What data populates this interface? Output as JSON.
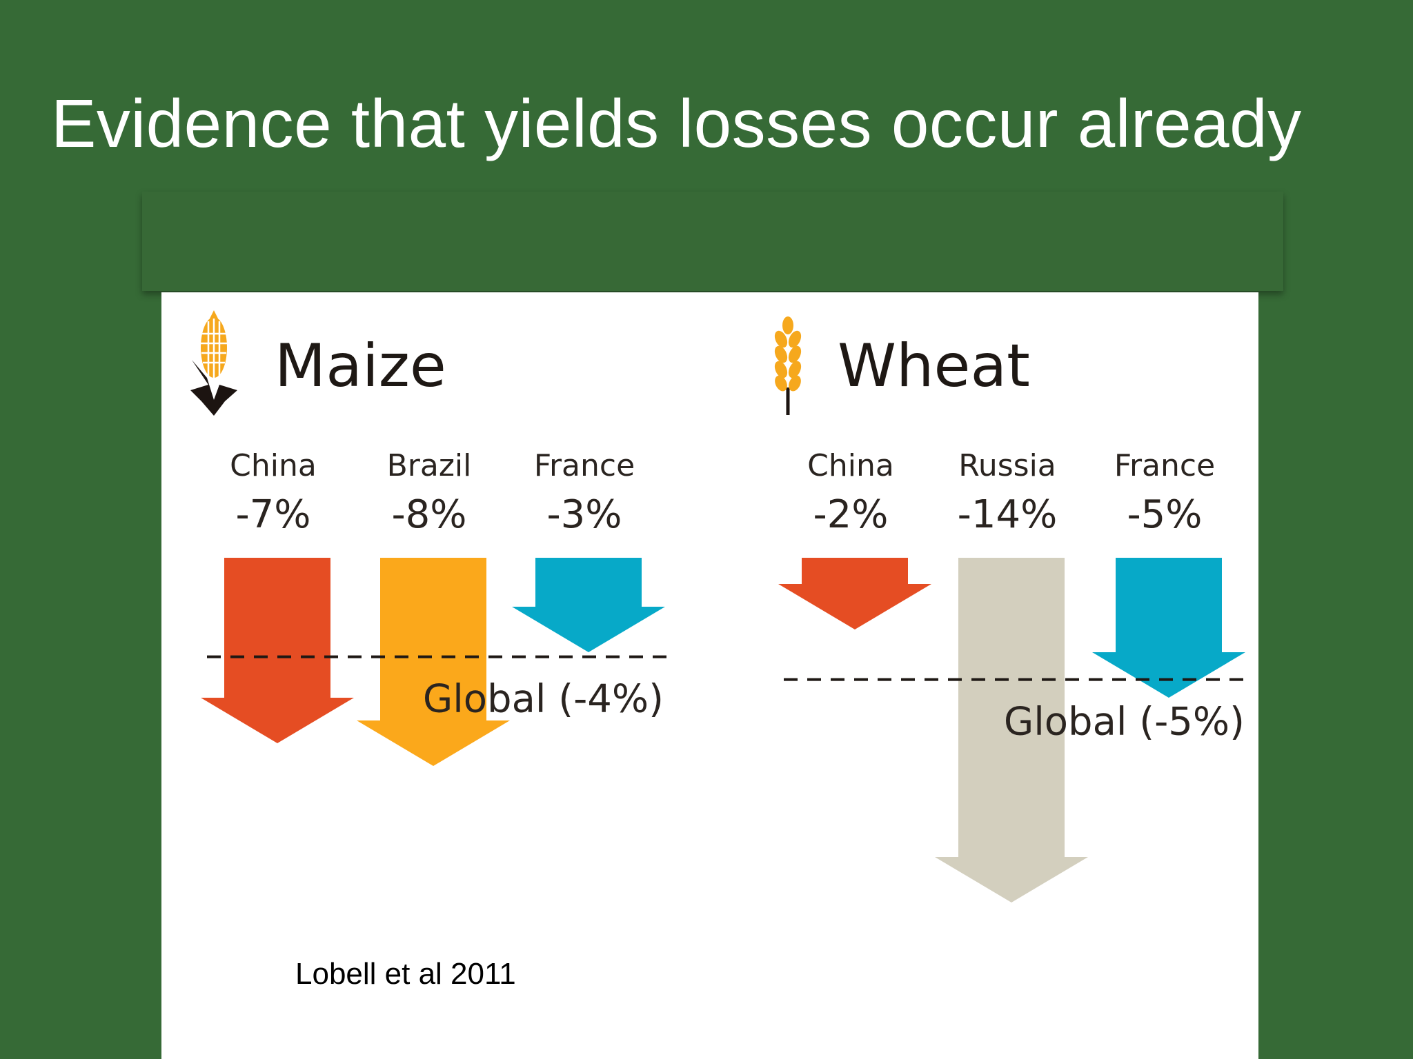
{
  "slide": {
    "title": "Evidence that yields losses occur already",
    "citation": "Lobell et al 2011"
  },
  "colors": {
    "background": "#366a36",
    "china": "#e54d23",
    "brazil": "#fba81b",
    "france": "#07a9c8",
    "russia": "#d3cfbe",
    "maize_icon": "#f6a81d",
    "wheat_icon": "#f6a81d"
  },
  "chart_data": [
    {
      "type": "bar",
      "title": "Maize",
      "icon": "corn-icon",
      "categories": [
        "China",
        "Brazil",
        "France"
      ],
      "values": [
        -7,
        -8,
        -3
      ],
      "labels": [
        "-7%",
        "-8%",
        "-3%"
      ],
      "colors": [
        "#e54d23",
        "#fba81b",
        "#07a9c8"
      ],
      "global_value": -4,
      "global_label": "Global (-4%)",
      "unit": "%"
    },
    {
      "type": "bar",
      "title": "Wheat",
      "icon": "wheat-icon",
      "categories": [
        "China",
        "Russia",
        "France"
      ],
      "values": [
        -2,
        -14,
        -5
      ],
      "labels": [
        "-2%",
        "-14%",
        "-5%"
      ],
      "colors": [
        "#e54d23",
        "#d3cfbe",
        "#07a9c8"
      ],
      "global_value": -5,
      "global_label": "Global (-5%)",
      "unit": "%"
    }
  ]
}
